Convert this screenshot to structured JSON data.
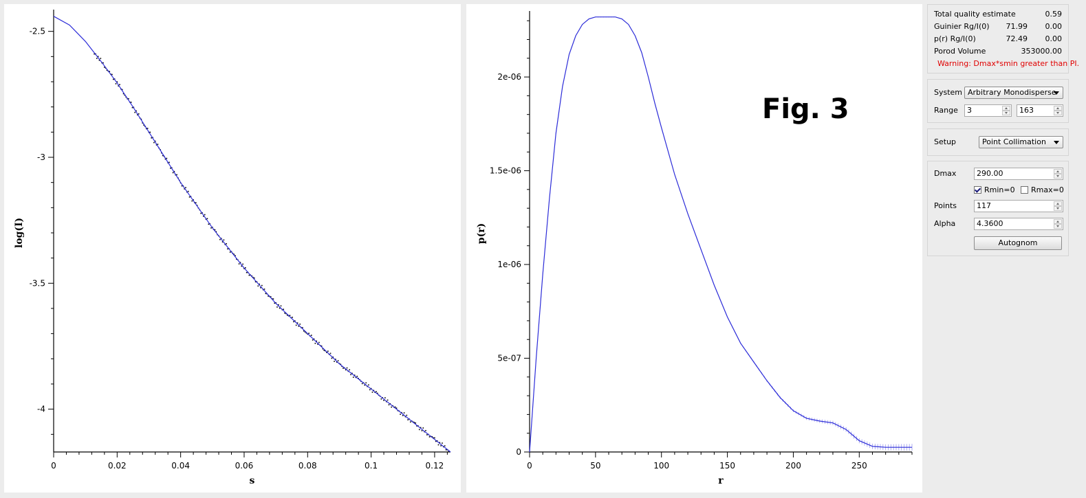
{
  "figure_label": "Fig. 3",
  "chart_data": [
    {
      "type": "scatter",
      "xlabel": "s",
      "ylabel": "log(I)",
      "xlim": [
        0,
        0.125
      ],
      "ylim": [
        -4.17,
        -2.43
      ],
      "xticks": [
        "0",
        "0.02",
        "0.04",
        "0.06",
        "0.08",
        "0.1",
        "0.12"
      ],
      "yticks": [
        "-2.5",
        "-3",
        "-3.5",
        "-4"
      ],
      "grid": false,
      "colors": {
        "fit": "#2b2bd8",
        "data": "#000000"
      },
      "fit_x": [
        0,
        0.005,
        0.01,
        0.015,
        0.02,
        0.025,
        0.03,
        0.035,
        0.04,
        0.045,
        0.05,
        0.055,
        0.06,
        0.065,
        0.07,
        0.075,
        0.08,
        0.085,
        0.09,
        0.095,
        0.1,
        0.105,
        0.11,
        0.115,
        0.12,
        0.125
      ],
      "fit_y": [
        -2.44,
        -2.475,
        -2.54,
        -2.62,
        -2.705,
        -2.8,
        -2.9,
        -3.0,
        -3.1,
        -3.19,
        -3.28,
        -3.36,
        -3.44,
        -3.51,
        -3.58,
        -3.64,
        -3.7,
        -3.76,
        -3.82,
        -3.87,
        -3.92,
        -3.97,
        -4.02,
        -4.07,
        -4.12,
        -4.17
      ],
      "data_x_range": [
        0.0128,
        0.1245
      ]
    },
    {
      "type": "line",
      "xlabel": "r",
      "ylabel": "p(r)",
      "xlim": [
        0,
        290
      ],
      "ylim": [
        0,
        2.33e-06
      ],
      "xticks": [
        "0",
        "50",
        "100",
        "150",
        "200",
        "250"
      ],
      "yticks": [
        "0",
        "5e-07",
        "1e-06",
        "1.5e-06",
        "2e-06"
      ],
      "grid": false,
      "colors": {
        "line": "#2b2bd8",
        "errorbar": "#9a9aee"
      },
      "x": [
        0,
        5,
        10,
        15,
        20,
        25,
        30,
        35,
        40,
        45,
        50,
        55,
        60,
        65,
        70,
        75,
        80,
        85,
        90,
        95,
        100,
        110,
        120,
        130,
        140,
        150,
        160,
        170,
        180,
        190,
        200,
        210,
        220,
        230,
        240,
        250,
        260,
        270,
        280,
        290
      ],
      "y": [
        0,
        5e-07,
        9.5e-07,
        1.35e-06,
        1.7e-06,
        1.95e-06,
        2.12e-06,
        2.22e-06,
        2.28e-06,
        2.31e-06,
        2.32e-06,
        2.32e-06,
        2.32e-06,
        2.32e-06,
        2.31e-06,
        2.28e-06,
        2.22e-06,
        2.13e-06,
        2e-06,
        1.86e-06,
        1.73e-06,
        1.48e-06,
        1.27e-06,
        1.08e-06,
        8.9e-07,
        7.2e-07,
        5.8e-07,
        4.8e-07,
        3.8e-07,
        2.9e-07,
        2.2e-07,
        1.8e-07,
        1.65e-07,
        1.55e-07,
        1.2e-07,
        6e-08,
        3e-08,
        2.5e-08,
        2.5e-08,
        2.5e-08
      ]
    }
  ],
  "quality": {
    "rows": [
      {
        "label": "Total quality estimate",
        "v1": "",
        "v2": "0.59"
      },
      {
        "label": "Guinier Rg/I(0)",
        "v1": "71.99",
        "v2": "0.00"
      },
      {
        "label": "p(r) Rg/I(0)",
        "v1": "72.49",
        "v2": "0.00"
      },
      {
        "label": "Porod Volume",
        "v1": "",
        "v2": "353000.00"
      }
    ],
    "warning": "Warning: Dmax*smin greater than PI."
  },
  "system": {
    "system_label": "System",
    "system_value": "Arbitrary Monodisperse",
    "range_label": "Range",
    "range_min": "3",
    "range_max": "163"
  },
  "setup": {
    "label": "Setup",
    "value": "Point Collimation"
  },
  "params": {
    "dmax_label": "Dmax",
    "dmax_value": "290.00",
    "rmin_label": "Rmin=0",
    "rmin_checked": true,
    "rmax_label": "Rmax=0",
    "rmax_checked": false,
    "points_label": "Points",
    "points_value": "117",
    "alpha_label": "Alpha",
    "alpha_value": "4.3600",
    "autognom_label": "Autognom"
  }
}
